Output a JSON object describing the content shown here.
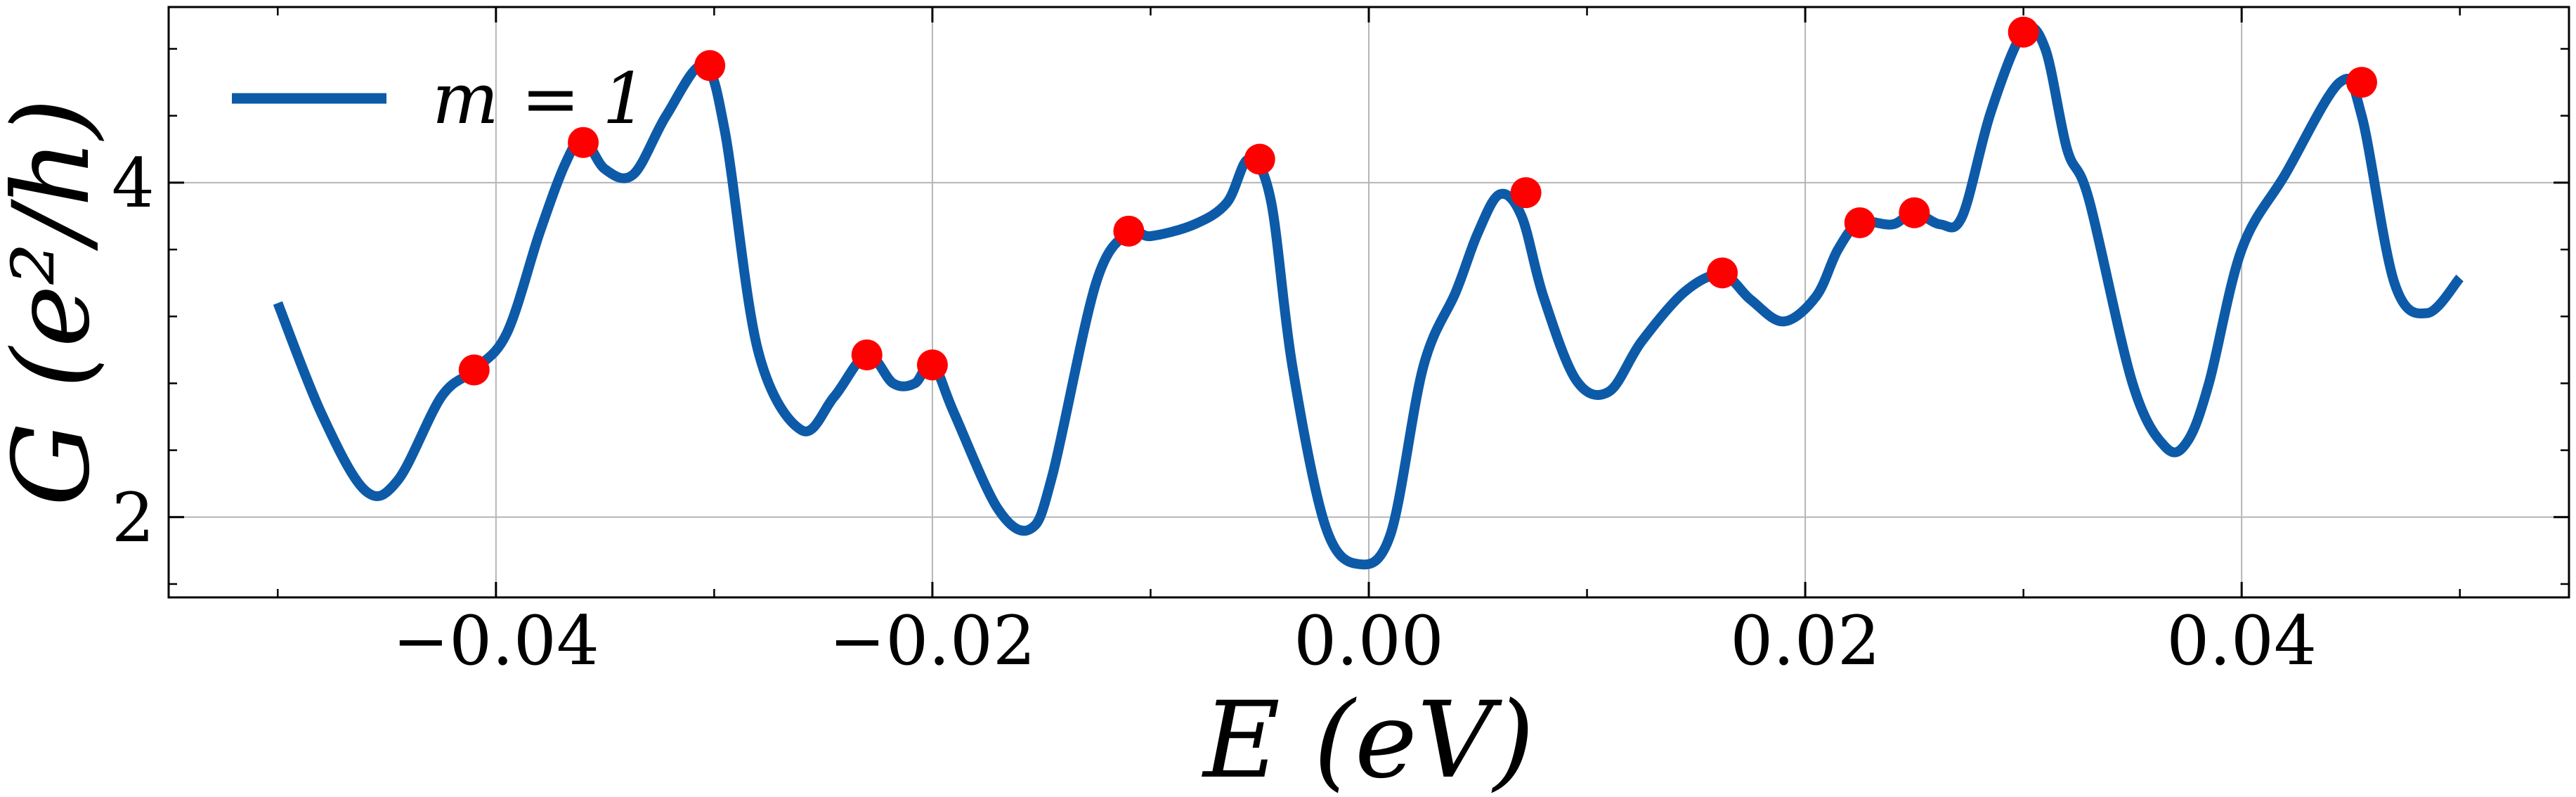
{
  "chart_data": {
    "type": "line",
    "title": "",
    "xlabel": "E (eV)",
    "ylabel": "G (e²/h)",
    "xlim": [
      -0.055,
      0.055
    ],
    "ylim": [
      1.52,
      5.05
    ],
    "x_ticks": [
      -0.04,
      -0.02,
      0.0,
      0.02,
      0.04
    ],
    "x_tick_labels": [
      "−0.04",
      "−0.02",
      "0.00",
      "0.02",
      "0.04"
    ],
    "y_ticks": [
      2,
      4
    ],
    "y_tick_labels": [
      "2",
      "4"
    ],
    "grid": true,
    "legend_position": "top-left",
    "line_color": "#0d5ba8",
    "marker_color": "#ff0000",
    "series": [
      {
        "name": "m = 1",
        "x": [
          -0.05,
          -0.048,
          -0.046,
          -0.0445,
          -0.0425,
          -0.041,
          -0.0395,
          -0.038,
          -0.0368,
          -0.036,
          -0.035,
          -0.0337,
          -0.0322,
          -0.0305,
          -0.0295,
          -0.028,
          -0.026,
          -0.0245,
          -0.023,
          -0.0218,
          -0.0208,
          -0.02,
          -0.019,
          -0.017,
          -0.0155,
          -0.0145,
          -0.0125,
          -0.011,
          -0.01,
          -0.008,
          -0.0065,
          -0.0055,
          -0.0045,
          -0.0035,
          -0.002,
          -0.0005,
          0.001,
          0.0025,
          0.004,
          0.005,
          0.006,
          0.007,
          0.008,
          0.0095,
          0.011,
          0.0125,
          0.0145,
          0.0162,
          0.0175,
          0.019,
          0.0205,
          0.0215,
          0.0225,
          0.024,
          0.025,
          0.0262,
          0.0272,
          0.0285,
          0.03,
          0.031,
          0.032,
          0.033,
          0.035,
          0.0365,
          0.0375,
          0.0385,
          0.04,
          0.042,
          0.0445,
          0.0455,
          0.047,
          0.0485,
          0.05
        ],
        "y": [
          3.28,
          2.62,
          2.16,
          2.22,
          2.72,
          2.88,
          3.1,
          3.7,
          4.12,
          4.26,
          4.08,
          4.05,
          4.4,
          4.7,
          4.3,
          3.0,
          2.52,
          2.72,
          2.97,
          2.8,
          2.8,
          2.92,
          2.62,
          2.05,
          1.93,
          2.25,
          3.4,
          3.7,
          3.68,
          3.75,
          3.88,
          4.14,
          3.9,
          2.9,
          1.95,
          1.72,
          1.9,
          2.9,
          3.35,
          3.7,
          3.93,
          3.8,
          3.32,
          2.82,
          2.75,
          3.05,
          3.35,
          3.45,
          3.3,
          3.17,
          3.32,
          3.6,
          3.76,
          3.75,
          3.82,
          3.75,
          3.8,
          4.42,
          4.9,
          4.8,
          4.2,
          3.9,
          2.8,
          2.42,
          2.45,
          2.8,
          3.6,
          4.05,
          4.6,
          4.4,
          3.4,
          3.22,
          3.43
        ]
      }
    ],
    "markers": {
      "x": [
        -0.041,
        -0.036,
        -0.0302,
        -0.023,
        -0.02,
        -0.011,
        -0.005,
        0.0072,
        0.0162,
        0.0225,
        0.025,
        0.03,
        0.0455
      ],
      "y": [
        2.88,
        4.24,
        4.7,
        2.97,
        2.91,
        3.71,
        4.14,
        3.94,
        3.46,
        3.76,
        3.82,
        4.9,
        4.6
      ]
    }
  }
}
